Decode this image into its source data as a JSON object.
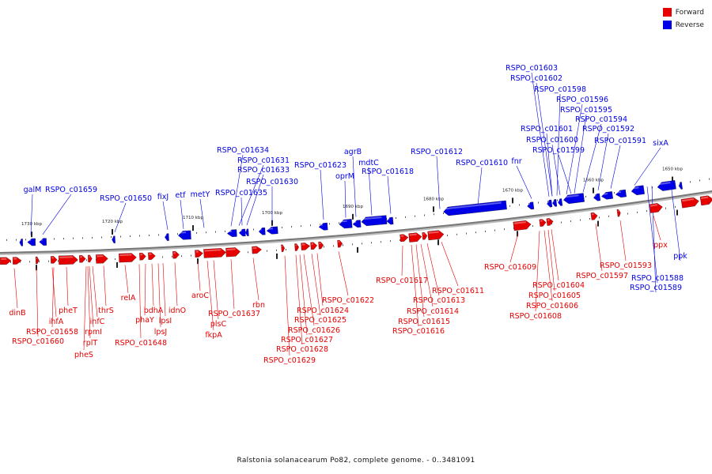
{
  "colors": {
    "forward": "#e60000",
    "reverse": "#0000e6",
    "backbone": "#777777"
  },
  "legend": [
    {
      "label": "Forward",
      "color": "#e60000"
    },
    {
      "label": "Reverse",
      "color": "#0000e6"
    }
  ],
  "caption": "Ralstonia solanacearum Po82, complete genome. - 0..3481091",
  "ticks": [
    {
      "label": "1730 kbp"
    },
    {
      "label": "1720 kbp"
    },
    {
      "label": "1710 kbp"
    },
    {
      "label": "1700 kbp"
    },
    {
      "label": "1690 kbp"
    },
    {
      "label": "1680 kbp"
    },
    {
      "label": "1670 kbp"
    },
    {
      "label": "1660 kbp"
    },
    {
      "label": "1650 kbp"
    }
  ],
  "reverse_labels": [
    "galM",
    "RSPO_c01659",
    "RSPO_c01650",
    "fixJ",
    "etf",
    "metY",
    "RSPO_c01634",
    "RSPO_c01631",
    "RSPO_c01633",
    "RSPO_c01630",
    "RSPO_c01635",
    "RSPO_c01623",
    "oprM",
    "agrB",
    "mdtC",
    "RSPO_c01618",
    "RSPO_c01612",
    "RSPO_c01610",
    "fnr",
    "RSPO_c01603",
    "RSPO_c01602",
    "RSPO_c01598",
    "RSPO_c01596",
    "RSPO_c01595",
    "RSPO_c01594",
    "RSPO_c01601",
    "RSPO_c01592",
    "RSPO_c01600",
    "RSPO_c01591",
    "RSPO_c01599",
    "sixA",
    "ppk",
    "RSPO_c01588",
    "RSPO_c01589"
  ],
  "forward_labels": [
    "dinB",
    "RSPO_c01658",
    "RSPO_c01660",
    "ihfA",
    "pheT",
    "rpmI",
    "rplT",
    "pheS",
    "infC",
    "thrS",
    "relA",
    "RSPO_c01648",
    "phaY",
    "bdhA",
    "lpsJ",
    "lpsI",
    "idnO",
    "aroC",
    "fkpA",
    "plsC",
    "RSPO_c01637",
    "rbn",
    "RSPO_c01629",
    "RSPO_c01628",
    "RSPO_c01627",
    "RSPO_c01626",
    "RSPO_c01625",
    "RSPO_c01624",
    "RSPO_c01622",
    "RSPO_c01617",
    "RSPO_c01616",
    "RSPO_c01615",
    "RSPO_c01614",
    "RSPO_c01613",
    "RSPO_c01611",
    "RSPO_c01609",
    "RSPO_c01608",
    "RSPO_c01606",
    "RSPO_c01605",
    "RSPO_c01604",
    "RSPO_c01597",
    "RSPO_c01593",
    "ppx"
  ]
}
